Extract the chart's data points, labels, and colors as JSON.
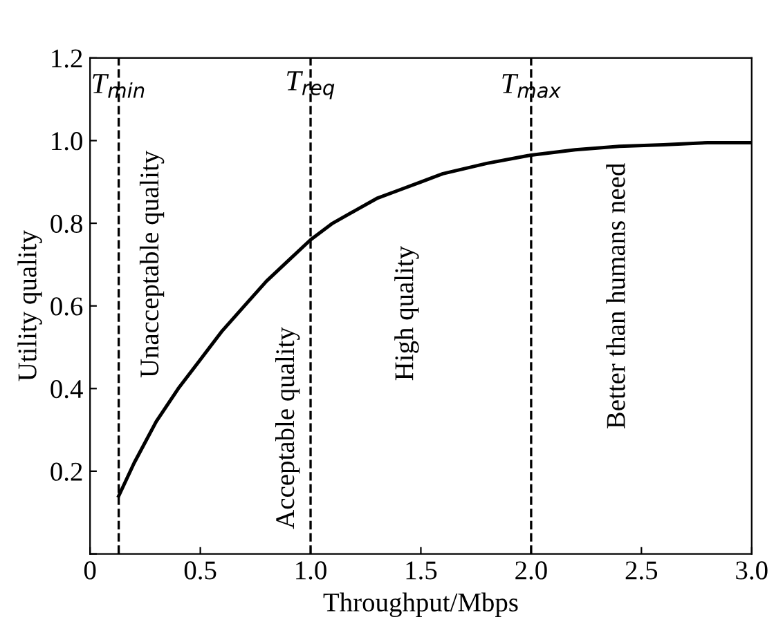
{
  "chart_data": {
    "type": "line",
    "xlabel": "Throughput/Mbps",
    "ylabel": "Utility quality",
    "x": [
      0.13,
      0.2,
      0.3,
      0.4,
      0.5,
      0.6,
      0.7,
      0.8,
      0.9,
      1.0,
      1.1,
      1.2,
      1.3,
      1.4,
      1.5,
      1.6,
      1.8,
      2.0,
      2.2,
      2.4,
      2.6,
      2.8,
      3.0
    ],
    "series": [
      {
        "color": "#000000",
        "values": [
          0.14,
          0.22,
          0.32,
          0.4,
          0.47,
          0.54,
          0.6,
          0.66,
          0.71,
          0.76,
          0.8,
          0.83,
          0.86,
          0.88,
          0.9,
          0.92,
          0.945,
          0.965,
          0.978,
          0.986,
          0.99,
          0.995,
          0.995
        ]
      }
    ],
    "xlim": [
      0,
      3.0
    ],
    "ylim": [
      0,
      1.2
    ],
    "xticks": [
      {
        "value": 0,
        "label": "0"
      },
      0.5,
      {
        "value": 1,
        "label": "1.0"
      },
      1.5,
      {
        "value": 2,
        "label": "2.0"
      },
      2.5,
      {
        "value": 3,
        "label": "3.0"
      }
    ],
    "yticks": [
      {
        "value": 0,
        "label": null
      },
      0.2,
      0.4,
      0.6,
      0.8,
      {
        "value": 1,
        "label": "1.0"
      },
      1.2
    ],
    "ref_lines": [
      {
        "axis": "x",
        "value": 0.13,
        "label": "T$_{min}$",
        "color": "#000000",
        "line_style": "dashed"
      },
      {
        "axis": "x",
        "value": 1.0,
        "label": "T$_{req}$",
        "color": "#000000",
        "line_style": "dashed"
      },
      {
        "axis": "x",
        "value": 2.0,
        "label": "T$_{max}$",
        "color": "#000000",
        "line_style": "dashed"
      }
    ],
    "annotations": [
      "Unacceptable quality",
      "Acceptable quality",
      "High quality",
      "Better than humans need"
    ],
    "grid": false,
    "legend": false,
    "marker": "none",
    "line_style": "solid"
  }
}
